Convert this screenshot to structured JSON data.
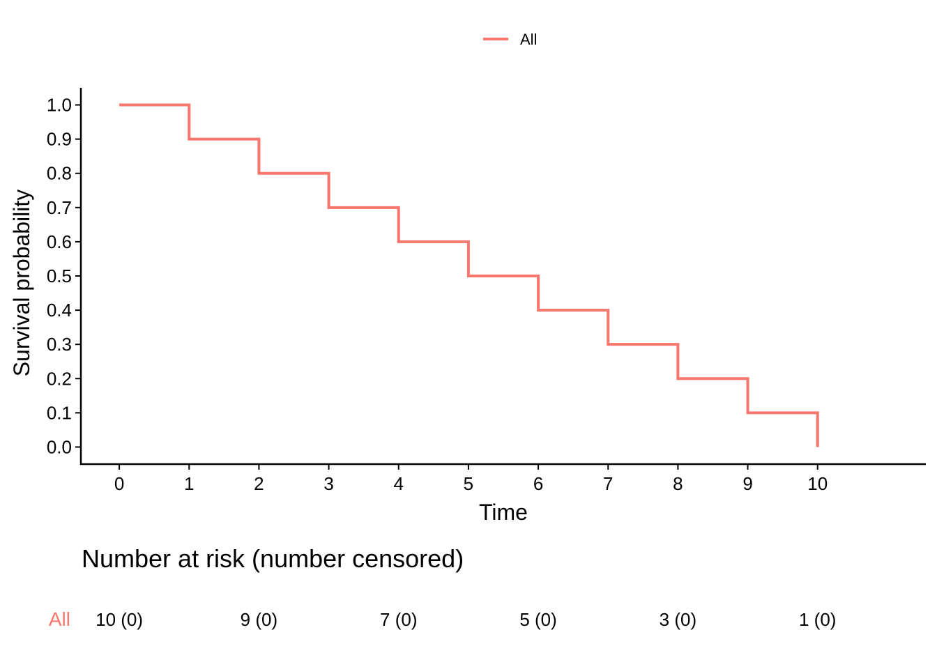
{
  "chart_data": {
    "type": "line",
    "subtype": "kaplan-meier step curve",
    "title": "",
    "xlabel": "Time",
    "ylabel": "Survival probability",
    "xlim": [
      -0.55,
      11.55
    ],
    "ylim": [
      -0.05,
      1.05
    ],
    "x_ticks": [
      0,
      1,
      2,
      3,
      4,
      5,
      6,
      7,
      8,
      9,
      10
    ],
    "y_ticks": [
      0.0,
      0.1,
      0.2,
      0.3,
      0.4,
      0.5,
      0.6,
      0.7,
      0.8,
      0.9,
      1.0
    ],
    "y_tick_labels": [
      "0.0",
      "0.1",
      "0.2",
      "0.3",
      "0.4",
      "0.5",
      "0.6",
      "0.7",
      "0.8",
      "0.9",
      "1.0"
    ],
    "grid": false,
    "legend_position": "top",
    "series": [
      {
        "name": "All",
        "color": "#F8766D",
        "step": true,
        "x": [
          0,
          1,
          2,
          3,
          4,
          5,
          6,
          7,
          8,
          9,
          10
        ],
        "y": [
          1.0,
          0.9,
          0.8,
          0.7,
          0.6,
          0.5,
          0.4,
          0.3,
          0.2,
          0.1,
          0.0
        ]
      }
    ],
    "risk_table": {
      "title": "Number at risk (number censored)",
      "rows": [
        {
          "group": "All",
          "color": "#F8766D",
          "times": [
            0,
            2,
            4,
            6,
            8,
            10
          ],
          "cells": [
            "10 (0)",
            "9 (0)",
            "7 (0)",
            "5 (0)",
            "3 (0)",
            "1 (0)"
          ]
        }
      ]
    }
  }
}
